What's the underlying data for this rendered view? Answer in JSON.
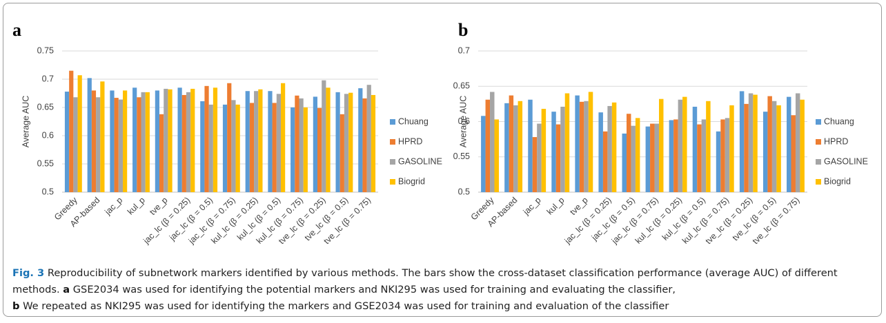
{
  "chart_data": [
    {
      "type": "bar",
      "panel_label": "a",
      "y_label": "Average AUC",
      "categories": [
        "Greedy",
        "AP-based",
        "jac_p",
        "kul_p",
        "tve_p",
        "jac_lc (β = 0.25)",
        "jac_lc (β = 0.5)",
        "jac_lc (β = 0.75)",
        "kul_lc (β = 0.25)",
        "kul_lc (β = 0.5)",
        "kul_lc (β = 0.75)",
        "tve_lc (β = 0.25)",
        "tve_lc (β = 0.5)",
        "tve_lc (β = 0.75)"
      ],
      "series": [
        {
          "name": "Chuang",
          "color": "#5b9bd5",
          "values": [
            0.678,
            0.702,
            0.68,
            0.685,
            0.68,
            0.685,
            0.661,
            0.655,
            0.679,
            0.679,
            0.65,
            0.669,
            0.677,
            0.684
          ]
        },
        {
          "name": "HPRD",
          "color": "#ed7d31",
          "values": [
            0.715,
            0.68,
            0.667,
            0.668,
            0.638,
            0.672,
            0.688,
            0.693,
            0.658,
            0.658,
            0.671,
            0.649,
            0.638,
            0.666
          ]
        },
        {
          "name": "GASOLINE",
          "color": "#a5a5a5",
          "values": [
            0.668,
            0.668,
            0.664,
            0.677,
            0.683,
            0.677,
            0.655,
            0.663,
            0.679,
            0.674,
            0.666,
            0.698,
            0.674,
            0.69
          ]
        },
        {
          "name": "Biogrid",
          "color": "#ffc000",
          "values": [
            0.707,
            0.696,
            0.68,
            0.677,
            0.682,
            0.683,
            0.685,
            0.655,
            0.682,
            0.693,
            0.65,
            0.685,
            0.676,
            0.672
          ]
        }
      ],
      "ylim": [
        0.5,
        0.75
      ],
      "yticks": [
        0.5,
        0.55,
        0.6,
        0.65,
        0.7,
        0.75
      ],
      "grid": true,
      "legend": "right"
    },
    {
      "type": "bar",
      "panel_label": "b",
      "y_label": "Average AUC",
      "categories": [
        "Greedy",
        "AP-based",
        "jac_p",
        "kul_p",
        "tve_p",
        "jac_lc (β = 0.25)",
        "jac_lc (β = 0.5)",
        "jac_lc (β = 0.75)",
        "kul_lc (β = 0.25)",
        "kul_lc (β = 0.5)",
        "kul_lc (β = 0.75)",
        "tve_lc (β = 0.25)",
        "tve_lc (β = 0.5)",
        "tve_lc (β = 0.75)"
      ],
      "series": [
        {
          "name": "Chuang",
          "color": "#5b9bd5",
          "values": [
            0.608,
            0.626,
            0.631,
            0.614,
            0.637,
            0.613,
            0.583,
            0.593,
            0.602,
            0.621,
            0.586,
            0.643,
            0.614,
            0.635
          ]
        },
        {
          "name": "HPRD",
          "color": "#ed7d31",
          "values": [
            0.631,
            0.637,
            0.578,
            0.596,
            0.628,
            0.586,
            0.611,
            0.597,
            0.603,
            0.596,
            0.603,
            0.625,
            0.636,
            0.609
          ]
        },
        {
          "name": "GASOLINE",
          "color": "#a5a5a5",
          "values": [
            0.642,
            0.623,
            0.597,
            0.621,
            0.629,
            0.622,
            0.594,
            0.597,
            0.631,
            0.603,
            0.605,
            0.64,
            0.629,
            0.64
          ]
        },
        {
          "name": "Biogrid",
          "color": "#ffc000",
          "values": [
            0.603,
            0.629,
            0.618,
            0.64,
            0.642,
            0.627,
            0.605,
            0.632,
            0.635,
            0.629,
            0.623,
            0.638,
            0.623,
            0.631
          ]
        }
      ],
      "ylim": [
        0.5,
        0.7
      ],
      "yticks": [
        0.5,
        0.55,
        0.6,
        0.65,
        0.7
      ],
      "grid": true,
      "legend": "right"
    }
  ],
  "caption": {
    "label": "Fig. 3",
    "text": "Reproducibility of subnetwork markers identified by various methods. The bars show the cross-dataset classification performance (average AUC) of different methods.",
    "parts": [
      {
        "label": "a",
        "text": "GSE2034 was used for identifying the potential markers and NKI295 was used for training and evaluating the classifier,"
      },
      {
        "label": "b",
        "text": "We repeated as NKI295 was used for identifying the markers and GSE2034 was used for training and evaluation of the classifier"
      }
    ]
  }
}
